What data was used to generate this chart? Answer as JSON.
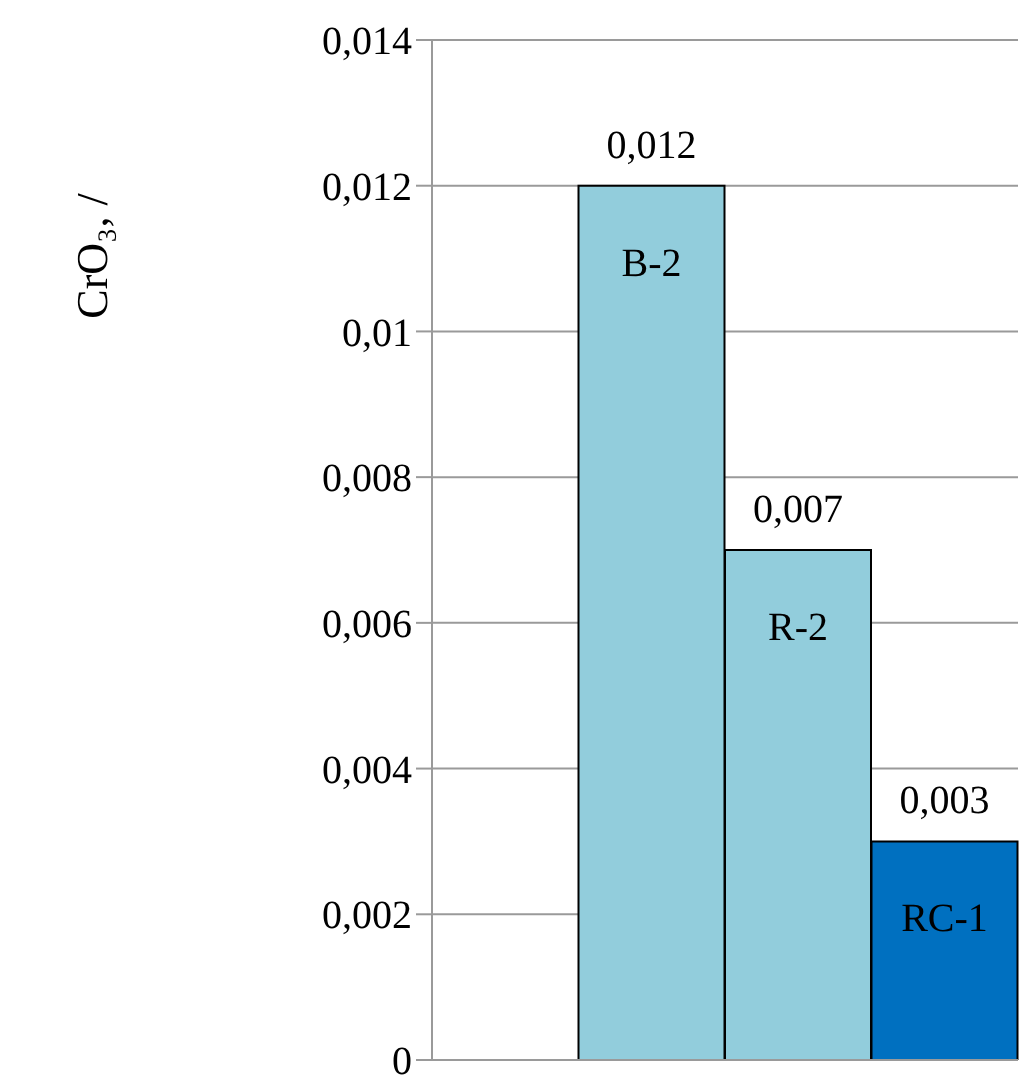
{
  "chart_data": {
    "type": "bar",
    "ylabel": "CrO₃,   /",
    "categories": [
      null,
      "B-2",
      "R-2",
      "RC-1"
    ],
    "values": [
      null,
      0.012,
      0.007,
      0.003
    ],
    "colors": [
      null,
      "#92cddc",
      "#92cddc",
      "#0070c0"
    ],
    "value_labels": [
      null,
      "0,012",
      "0,007",
      "0,003"
    ],
    "ylim": [
      0,
      0.014
    ],
    "yticks": [
      {
        "value": 0,
        "label": "0"
      },
      {
        "value": 0.002,
        "label": "0,002"
      },
      {
        "value": 0.004,
        "label": "0,004"
      },
      {
        "value": 0.006,
        "label": "0,006"
      },
      {
        "value": 0.008,
        "label": "0,008"
      },
      {
        "value": 0.01,
        "label": "0,01"
      },
      {
        "value": 0.012,
        "label": "0,012"
      },
      {
        "value": 0.014,
        "label": "0,014"
      }
    ],
    "grid": "y"
  }
}
